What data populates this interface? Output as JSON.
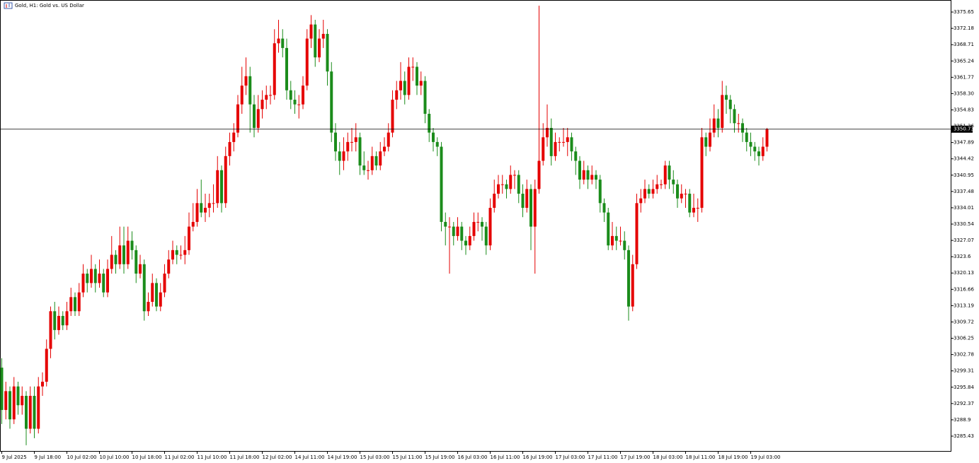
{
  "chart_data": {
    "type": "candlestick",
    "title": "Gold, H1:  Gold vs. US Dollar",
    "up_color": "#e50000",
    "down_color": "#1b8c1b",
    "ylim": [
      3282.27,
      3378.21
    ],
    "yticks": [
      3285.43,
      3288.9,
      3292.37,
      3295.84,
      3299.31,
      3302.78,
      3306.25,
      3309.72,
      3313.19,
      3316.66,
      3320.13,
      3323.6,
      3327.07,
      3330.54,
      3334.01,
      3337.48,
      3340.95,
      3344.42,
      3347.89,
      3351.36,
      3354.83,
      {
        "value": 3358.3,
        "label": "3358.30"
      },
      3361.77,
      3365.24,
      3368.71,
      3372.18,
      3375.65
    ],
    "categories": [
      "9 Jul 2025",
      null,
      null,
      null,
      null,
      null,
      null,
      null,
      "9 Jul 18:00",
      null,
      null,
      null,
      null,
      null,
      null,
      null,
      "10 Jul 02:00",
      null,
      null,
      null,
      null,
      null,
      null,
      null,
      "10 Jul 10:00",
      null,
      null,
      null,
      null,
      null,
      null,
      null,
      "10 Jul 18:00",
      null,
      null,
      null,
      null,
      null,
      null,
      null,
      "11 Jul 02:00",
      null,
      null,
      null,
      null,
      null,
      null,
      null,
      "11 Jul 10:00",
      null,
      null,
      null,
      null,
      null,
      null,
      null,
      "11 Jul 18:00",
      null,
      null,
      null,
      null,
      null,
      null,
      null,
      "12 Jul 02:00",
      null,
      null,
      null,
      null,
      null,
      null,
      null,
      "14 Jul 11:00",
      null,
      null,
      null,
      null,
      null,
      null,
      null,
      "14 Jul 19:00",
      null,
      null,
      null,
      null,
      null,
      null,
      null,
      "15 Jul 03:00",
      null,
      null,
      null,
      null,
      null,
      null,
      null,
      "15 Jul 11:00",
      null,
      null,
      null,
      null,
      null,
      null,
      null,
      "15 Jul 19:00",
      null,
      null,
      null,
      null,
      null,
      null,
      null,
      "16 Jul 03:00",
      null,
      null,
      null,
      null,
      null,
      null,
      null,
      "16 Jul 11:00",
      null,
      null,
      null,
      null,
      null,
      null,
      null,
      "16 Jul 19:00",
      null,
      null,
      null,
      null,
      null,
      null,
      null,
      "17 Jul 03:00",
      null,
      null,
      null,
      null,
      null,
      null,
      null,
      "17 Jul 11:00",
      null,
      null,
      null,
      null,
      null,
      null,
      null,
      "17 Jul 19:00",
      null,
      null,
      null,
      null,
      null,
      null,
      null,
      "18 Jul 03:00",
      null,
      null,
      null,
      null,
      null,
      null,
      null,
      "18 Jul 11:00",
      null,
      null,
      null,
      null,
      null,
      null,
      null,
      "18 Jul 19:00",
      null,
      null,
      null,
      null,
      null,
      null,
      null,
      "19 Jul 03:00",
      null,
      null,
      null,
      null
    ],
    "ohlc": [
      [
        3300,
        3302,
        3288,
        3291
      ],
      [
        3291,
        3297,
        3289,
        3295
      ],
      [
        3295,
        3296,
        3287,
        3289
      ],
      [
        3289,
        3298,
        3288,
        3296
      ],
      [
        3296,
        3297,
        3290,
        3292
      ],
      [
        3292,
        3296,
        3290,
        3294
      ],
      [
        3294,
        3295,
        3283.5,
        3287
      ],
      [
        3287,
        3296,
        3286,
        3294
      ],
      [
        3294,
        3296,
        3285,
        3287
      ],
      [
        3287,
        3298,
        3286,
        3296
      ],
      [
        3296,
        3299,
        3294,
        3297
      ],
      [
        3297,
        3306,
        3296,
        3304
      ],
      [
        3304,
        3313,
        3302,
        3312
      ],
      [
        3312,
        3314,
        3306,
        3308
      ],
      [
        3308,
        3313,
        3307,
        3311
      ],
      [
        3311,
        3312,
        3308,
        3309
      ],
      [
        3309,
        3314,
        3308,
        3312
      ],
      [
        3312,
        3317,
        3311,
        3315
      ],
      [
        3315,
        3316,
        3311,
        3312
      ],
      [
        3312,
        3318,
        3311,
        3316
      ],
      [
        3316,
        3322,
        3315,
        3320
      ],
      [
        3320,
        3321,
        3316,
        3318
      ],
      [
        3318,
        3324,
        3317,
        3321
      ],
      [
        3321,
        3322,
        3316,
        3318
      ],
      [
        3318,
        3323,
        3317,
        3320
      ],
      [
        3320,
        3321,
        3315,
        3316
      ],
      [
        3316,
        3323,
        3315,
        3321
      ],
      [
        3321,
        3328,
        3320,
        3324
      ],
      [
        3324,
        3325,
        3320,
        3322
      ],
      [
        3322,
        3330,
        3321,
        3326
      ],
      [
        3326,
        3330,
        3320,
        3322
      ],
      [
        3322,
        3330,
        3321,
        3327
      ],
      [
        3327,
        3329,
        3323,
        3325
      ],
      [
        3325,
        3326,
        3318,
        3320
      ],
      [
        3320,
        3324,
        3319,
        3322
      ],
      [
        3322,
        3323,
        3310,
        3312
      ],
      [
        3312,
        3316,
        3311,
        3314
      ],
      [
        3314,
        3320,
        3313,
        3318
      ],
      [
        3318,
        3319,
        3312,
        3313
      ],
      [
        3313,
        3318,
        3312,
        3316
      ],
      [
        3316,
        3322,
        3315,
        3320
      ],
      [
        3320,
        3325,
        3319,
        3323
      ],
      [
        3323,
        3327,
        3322,
        3325
      ],
      [
        3325,
        3326,
        3322,
        3324
      ],
      [
        3324,
        3326,
        3323,
        3324
      ],
      [
        3324,
        3328,
        3322,
        3325
      ],
      [
        3325,
        3333,
        3324,
        3330
      ],
      [
        3330,
        3335,
        3329,
        3331
      ],
      [
        3331,
        3338,
        3330,
        3335
      ],
      [
        3335,
        3340,
        3332,
        3333
      ],
      [
        3333,
        3337,
        3331,
        3334
      ],
      [
        3334,
        3337,
        3332,
        3335
      ],
      [
        3335,
        3339,
        3333,
        3335
      ],
      [
        3335,
        3345,
        3334,
        3342
      ],
      [
        3342,
        3343,
        3333,
        3335
      ],
      [
        3335,
        3347,
        3334,
        3345
      ],
      [
        3345,
        3350,
        3343,
        3348
      ],
      [
        3348,
        3352,
        3346,
        3350
      ],
      [
        3350,
        3358,
        3349,
        3356
      ],
      [
        3356,
        3364,
        3354,
        3360
      ],
      [
        3360,
        3366,
        3358,
        3362
      ],
      [
        3362,
        3364,
        3350,
        3356
      ],
      [
        3356,
        3358,
        3349,
        3351
      ],
      [
        3351,
        3358,
        3350,
        3355
      ],
      [
        3355,
        3359,
        3353,
        3357
      ],
      [
        3357,
        3360,
        3355,
        3358
      ],
      [
        3358,
        3360,
        3356,
        3358
      ],
      [
        3358,
        3372,
        3357,
        3369
      ],
      [
        3369,
        3374,
        3367,
        3370
      ],
      [
        3370,
        3372,
        3366,
        3368
      ],
      [
        3368,
        3370,
        3357,
        3359
      ],
      [
        3359,
        3361,
        3355,
        3357
      ],
      [
        3357,
        3359,
        3354,
        3356
      ],
      [
        3356,
        3358,
        3353,
        3356
      ],
      [
        3356,
        3362,
        3355,
        3360
      ],
      [
        3360,
        3372,
        3359,
        3370
      ],
      [
        3370,
        3375,
        3368,
        3373
      ],
      [
        3373,
        3374,
        3364,
        3366
      ],
      [
        3366,
        3372,
        3365,
        3370
      ],
      [
        3370,
        3374,
        3368,
        3371
      ],
      [
        3371,
        3372,
        3360,
        3363
      ],
      [
        3363,
        3365,
        3348,
        3350
      ],
      [
        3350,
        3352,
        3344,
        3346
      ],
      [
        3346,
        3348,
        3341,
        3344
      ],
      [
        3344,
        3349,
        3342,
        3346
      ],
      [
        3346,
        3350,
        3344,
        3348
      ],
      [
        3348,
        3351,
        3346,
        3348
      ],
      [
        3348,
        3352,
        3346,
        3349
      ],
      [
        3349,
        3350,
        3341,
        3343
      ],
      [
        3343,
        3346,
        3341,
        3342
      ],
      [
        3342,
        3344,
        3340,
        3342
      ],
      [
        3342,
        3347,
        3341,
        3345
      ],
      [
        3345,
        3346,
        3342,
        3343
      ],
      [
        3343,
        3348,
        3342,
        3346
      ],
      [
        3346,
        3349,
        3345,
        3347
      ],
      [
        3347,
        3352,
        3346,
        3350
      ],
      [
        3350,
        3359,
        3349,
        3357
      ],
      [
        3357,
        3361,
        3355,
        3359
      ],
      [
        3359,
        3365,
        3357,
        3361
      ],
      [
        3361,
        3363,
        3356,
        3358
      ],
      [
        3358,
        3366,
        3357,
        3364
      ],
      [
        3364,
        3366,
        3361,
        3364
      ],
      [
        3364,
        3365,
        3358,
        3360
      ],
      [
        3360,
        3363,
        3358,
        3361
      ],
      [
        3361,
        3362,
        3352,
        3354
      ],
      [
        3354,
        3355,
        3348,
        3350
      ],
      [
        3350,
        3351,
        3346,
        3348
      ],
      [
        3348,
        3349,
        3345,
        3347
      ],
      [
        3347,
        3348,
        3329,
        3331
      ],
      [
        3331,
        3333,
        3326,
        3330
      ],
      [
        3330,
        3332,
        3320,
        3330
      ],
      [
        3330,
        3331,
        3326,
        3328
      ],
      [
        3328,
        3332,
        3327,
        3330
      ],
      [
        3330,
        3331,
        3325,
        3327
      ],
      [
        3327,
        3328,
        3324,
        3326
      ],
      [
        3326,
        3330,
        3325,
        3328
      ],
      [
        3328,
        3333,
        3327,
        3331
      ],
      [
        3331,
        3333,
        3329,
        3331
      ],
      [
        3331,
        3332,
        3327,
        3330
      ],
      [
        3330,
        3331,
        3324,
        3326
      ],
      [
        3326,
        3336,
        3325,
        3334
      ],
      [
        3334,
        3340,
        3333,
        3337
      ],
      [
        3337,
        3341,
        3336,
        3339
      ],
      [
        3339,
        3341,
        3337,
        3339
      ],
      [
        3339,
        3340,
        3336,
        3338
      ],
      [
        3338,
        3343,
        3337,
        3341
      ],
      [
        3341,
        3342,
        3338,
        3341
      ],
      [
        3341,
        3342,
        3335,
        3337
      ],
      [
        3337,
        3339,
        3332,
        3334
      ],
      [
        3334,
        3340,
        3333,
        3338
      ],
      [
        3338,
        3339,
        3325,
        3330
      ],
      [
        3330,
        3340,
        3320,
        3338
      ],
      [
        3338,
        3377,
        3337,
        3344
      ],
      [
        3344,
        3352,
        3343,
        3349
      ],
      [
        3349,
        3356,
        3347,
        3351
      ],
      [
        3351,
        3353,
        3343,
        3345
      ],
      [
        3345,
        3350,
        3344,
        3348
      ],
      [
        3348,
        3349,
        3346,
        3348
      ],
      [
        3348,
        3351,
        3347,
        3348
      ],
      [
        3348,
        3351,
        3345,
        3349
      ],
      [
        3349,
        3350,
        3344,
        3346
      ],
      [
        3346,
        3347,
        3341,
        3344
      ],
      [
        3344,
        3345,
        3338,
        3340
      ],
      [
        3340,
        3344,
        3339,
        3342
      ],
      [
        3342,
        3343,
        3338,
        3340
      ],
      [
        3340,
        3343,
        3339,
        3341
      ],
      [
        3341,
        3342,
        3338,
        3340
      ],
      [
        3340,
        3341,
        3333,
        3335
      ],
      [
        3335,
        3336,
        3331,
        3333
      ],
      [
        3333,
        3334,
        3325,
        3326
      ],
      [
        3326,
        3331,
        3325,
        3328
      ],
      [
        3328,
        3330,
        3325,
        3327
      ],
      [
        3327,
        3330,
        3326,
        3327
      ],
      [
        3327,
        3329,
        3323,
        3325
      ],
      [
        3325,
        3326,
        3310,
        3313
      ],
      [
        3313,
        3324,
        3312,
        3322
      ],
      [
        3322,
        3337,
        3321,
        3335
      ],
      [
        3335,
        3338,
        3333,
        3336
      ],
      [
        3336,
        3340,
        3335,
        3338
      ],
      [
        3338,
        3339,
        3336,
        3337
      ],
      [
        3337,
        3340,
        3336,
        3338
      ],
      [
        3338,
        3341,
        3337,
        3339
      ],
      [
        3339,
        3340,
        3338,
        3339
      ],
      [
        3339,
        3344,
        3338,
        3343
      ],
      [
        3343,
        3344,
        3338,
        3340
      ],
      [
        3340,
        3342,
        3337,
        3339
      ],
      [
        3339,
        3340,
        3334,
        3336
      ],
      [
        3336,
        3339,
        3335,
        3337
      ],
      [
        3337,
        3338,
        3334,
        3337
      ],
      [
        3337,
        3338,
        3332,
        3333
      ],
      [
        3333,
        3337,
        3332,
        3334
      ],
      [
        3334,
        3336,
        3331,
        3334
      ],
      [
        3334,
        3351,
        3333,
        3349
      ],
      [
        3349,
        3350,
        3345,
        3347
      ],
      [
        3347,
        3353,
        3346,
        3350
      ],
      [
        3350,
        3356,
        3349,
        3353
      ],
      [
        3353,
        3355,
        3349,
        3351
      ],
      [
        3351,
        3361,
        3350,
        3358
      ],
      [
        3358,
        3360,
        3354,
        3357
      ],
      [
        3357,
        3358,
        3352,
        3355
      ],
      [
        3355,
        3356,
        3350,
        3352
      ],
      [
        3352,
        3354,
        3350,
        3352
      ],
      [
        3352,
        3353,
        3348,
        3350
      ],
      [
        3350,
        3351,
        3346,
        3348
      ],
      [
        3348,
        3350,
        3345,
        3347
      ],
      [
        3347,
        3348,
        3344,
        3346
      ],
      [
        3346,
        3347,
        3343,
        3345
      ],
      [
        3345,
        3349,
        3344,
        3347
      ],
      [
        3347,
        3351,
        3346,
        3350.73
      ]
    ]
  }
}
